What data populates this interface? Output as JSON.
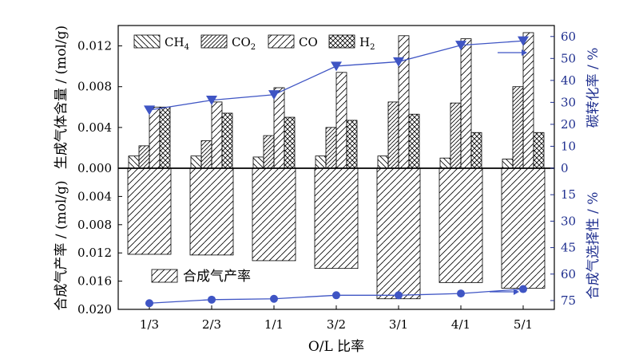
{
  "chart_data": {
    "type": "bar",
    "categories": [
      "1/3",
      "2/3",
      "1/1",
      "3/2",
      "3/1",
      "4/1",
      "5/1"
    ],
    "xlabel": "O/L 比率",
    "upper": {
      "ylabel": "生成气体含量 / (mol/g)",
      "ylim": [
        0,
        0.014
      ],
      "yticks": [
        "0.000",
        "0.004",
        "0.008",
        "0.012"
      ],
      "series": [
        {
          "name": "CH4",
          "label_main": "CH",
          "label_sub": "4",
          "pattern": "hatch-back",
          "values": [
            0.0012,
            0.0012,
            0.0011,
            0.0012,
            0.0012,
            0.001,
            0.0009
          ]
        },
        {
          "name": "CO2",
          "label_main": "CO",
          "label_sub": "2",
          "pattern": "hatch-fwd-dense",
          "values": [
            0.0022,
            0.0027,
            0.0032,
            0.004,
            0.0065,
            0.0064,
            0.008
          ]
        },
        {
          "name": "CO",
          "label_main": "CO",
          "label_sub": "",
          "pattern": "hatch-fwd",
          "values": [
            0.006,
            0.0065,
            0.0079,
            0.0094,
            0.013,
            0.0127,
            0.0133
          ]
        },
        {
          "name": "H2",
          "label_main": "H",
          "label_sub": "2",
          "pattern": "cross",
          "values": [
            0.006,
            0.0054,
            0.005,
            0.0047,
            0.0053,
            0.0035,
            0.0035
          ]
        }
      ],
      "line": {
        "name": "碳转化率",
        "axis_label": "碳转化率 / %",
        "marker": "triangle-down",
        "color": "#3f55c4",
        "ylim": [
          0,
          65
        ],
        "yticks": [
          "0",
          "10",
          "20",
          "30",
          "40",
          "50",
          "60"
        ],
        "values": [
          26.5,
          31,
          33.5,
          46.5,
          48.5,
          56,
          58
        ]
      }
    },
    "lower": {
      "ylabel": "合成气产率 / (mol/g)",
      "ylim": [
        0,
        0.02
      ],
      "yticks": [
        "0.004",
        "0.008",
        "0.012",
        "0.016",
        "0.020"
      ],
      "bars": {
        "name": "合成气产率",
        "values": [
          0.0122,
          0.0123,
          0.0131,
          0.0142,
          0.0185,
          0.0162,
          0.017
        ]
      },
      "line": {
        "name": "合成气选择性",
        "axis_label": "合成气选择性 / %",
        "marker": "circle",
        "color": "#3f55c4",
        "ylim": [
          0,
          80
        ],
        "yticks": [
          "15",
          "30",
          "45",
          "60",
          "75"
        ],
        "values": [
          76.5,
          74.5,
          74,
          72,
          72,
          71,
          68.5
        ]
      }
    }
  }
}
